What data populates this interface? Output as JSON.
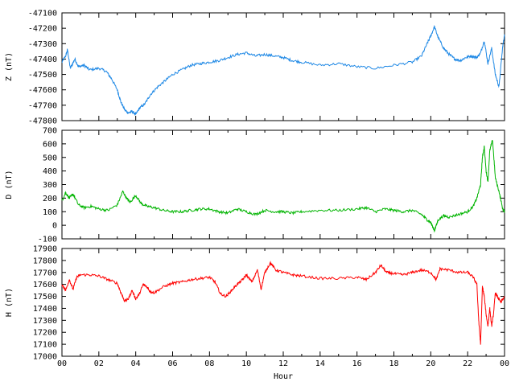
{
  "chart_data": [
    {
      "type": "line",
      "ylabel": "Z (nT)",
      "ylim": [
        -47800,
        -47100
      ],
      "yticks": [
        -47100,
        -47200,
        -47300,
        -47400,
        -47500,
        -47600,
        -47700,
        -47800
      ],
      "color": "#1e88e5",
      "x": [
        0,
        0.2,
        0.3,
        0.45,
        0.7,
        0.9,
        1.2,
        1.5,
        2.0,
        2.4,
        2.7,
        3.0,
        3.2,
        3.4,
        3.6,
        3.8,
        4.0,
        4.2,
        4.5,
        4.8,
        5.2,
        5.6,
        6.0,
        6.5,
        7.0,
        7.5,
        8.0,
        8.5,
        9.0,
        9.5,
        10.0,
        10.5,
        11.0,
        11.5,
        12.0,
        12.5,
        13.0,
        14.0,
        15.0,
        16.0,
        17.0,
        18.0,
        19.0,
        19.5,
        19.8,
        20.0,
        20.2,
        20.4,
        20.7,
        21.0,
        21.3,
        21.6,
        21.9,
        22.2,
        22.5,
        22.7,
        22.9,
        23.1,
        23.3,
        23.5,
        23.7,
        23.9,
        24.0
      ],
      "y": [
        -47420,
        -47380,
        -47340,
        -47460,
        -47400,
        -47450,
        -47440,
        -47470,
        -47460,
        -47480,
        -47530,
        -47600,
        -47680,
        -47730,
        -47750,
        -47740,
        -47760,
        -47720,
        -47690,
        -47630,
        -47580,
        -47540,
        -47500,
        -47470,
        -47440,
        -47430,
        -47420,
        -47410,
        -47390,
        -47370,
        -47360,
        -47380,
        -47370,
        -47380,
        -47390,
        -47410,
        -47420,
        -47440,
        -47430,
        -47450,
        -47460,
        -47440,
        -47420,
        -47380,
        -47300,
        -47250,
        -47190,
        -47260,
        -47330,
        -47370,
        -47400,
        -47410,
        -47390,
        -47380,
        -47390,
        -47360,
        -47280,
        -47430,
        -47330,
        -47500,
        -47580,
        -47320,
        -47240
      ]
    },
    {
      "type": "line",
      "ylabel": "D (nT)",
      "ylim": [
        -100,
        700
      ],
      "yticks": [
        700,
        600,
        500,
        400,
        300,
        200,
        100,
        0,
        -100
      ],
      "color": "#00b400",
      "x": [
        0,
        0.2,
        0.4,
        0.6,
        0.9,
        1.2,
        1.6,
        2.0,
        2.5,
        3.0,
        3.3,
        3.5,
        3.7,
        4.0,
        4.3,
        4.6,
        5.0,
        5.5,
        6.0,
        6.5,
        7.0,
        7.5,
        8.0,
        8.5,
        9.0,
        9.5,
        10.0,
        10.5,
        11.0,
        11.5,
        12.0,
        12.5,
        13.0,
        14.0,
        15.0,
        16.0,
        16.5,
        17.0,
        17.5,
        18.0,
        18.5,
        19.0,
        19.5,
        19.8,
        20.0,
        20.2,
        20.4,
        20.7,
        21.0,
        21.5,
        22.0,
        22.3,
        22.5,
        22.7,
        22.8,
        22.9,
        23.0,
        23.1,
        23.2,
        23.35,
        23.5,
        23.7,
        23.9,
        24.0
      ],
      "y": [
        180,
        240,
        200,
        230,
        150,
        130,
        140,
        120,
        110,
        150,
        250,
        200,
        170,
        220,
        160,
        140,
        130,
        110,
        100,
        100,
        110,
        120,
        120,
        100,
        90,
        120,
        100,
        80,
        110,
        100,
        100,
        90,
        100,
        110,
        110,
        120,
        130,
        100,
        120,
        110,
        100,
        110,
        80,
        40,
        20,
        -40,
        40,
        70,
        60,
        80,
        100,
        140,
        200,
        300,
        500,
        580,
        400,
        320,
        550,
        630,
        350,
        250,
        120,
        100
      ]
    },
    {
      "type": "line",
      "ylabel": "H (nT)",
      "xlabel": "Hour",
      "xticks": [
        "00",
        "02",
        "04",
        "06",
        "08",
        "10",
        "12",
        "14",
        "16",
        "18",
        "20",
        "22",
        "00"
      ],
      "ylim": [
        17000,
        17900
      ],
      "yticks": [
        17900,
        17800,
        17700,
        17600,
        17500,
        17400,
        17300,
        17200,
        17100,
        17000
      ],
      "color": "#ff0000",
      "x": [
        0,
        0.2,
        0.4,
        0.6,
        0.8,
        1.0,
        1.5,
        2.0,
        2.5,
        3.0,
        3.2,
        3.4,
        3.6,
        3.8,
        4.0,
        4.2,
        4.4,
        4.6,
        4.8,
        5.0,
        5.5,
        6.0,
        6.5,
        7.0,
        7.5,
        8.0,
        8.3,
        8.6,
        8.9,
        9.2,
        9.5,
        9.8,
        10.0,
        10.3,
        10.6,
        10.8,
        11.0,
        11.3,
        11.6,
        12.0,
        12.5,
        13.0,
        14.0,
        15.0,
        16.0,
        16.5,
        17.0,
        17.3,
        17.6,
        18.0,
        18.5,
        19.0,
        19.5,
        20.0,
        20.3,
        20.5,
        21.0,
        21.5,
        22.0,
        22.3,
        22.5,
        22.6,
        22.7,
        22.8,
        22.9,
        23.0,
        23.1,
        23.2,
        23.3,
        23.4,
        23.5,
        23.6,
        23.8,
        24.0
      ],
      "y": [
        17600,
        17550,
        17640,
        17560,
        17660,
        17680,
        17680,
        17670,
        17640,
        17610,
        17530,
        17460,
        17480,
        17550,
        17480,
        17520,
        17600,
        17580,
        17540,
        17530,
        17580,
        17610,
        17620,
        17640,
        17650,
        17660,
        17620,
        17520,
        17500,
        17550,
        17600,
        17640,
        17680,
        17620,
        17720,
        17560,
        17700,
        17780,
        17720,
        17700,
        17680,
        17670,
        17650,
        17650,
        17660,
        17640,
        17700,
        17760,
        17700,
        17690,
        17680,
        17700,
        17720,
        17700,
        17640,
        17730,
        17720,
        17700,
        17700,
        17660,
        17600,
        17300,
        17100,
        17580,
        17500,
        17350,
        17250,
        17400,
        17250,
        17350,
        17530,
        17500,
        17450,
        17500
      ]
    }
  ]
}
